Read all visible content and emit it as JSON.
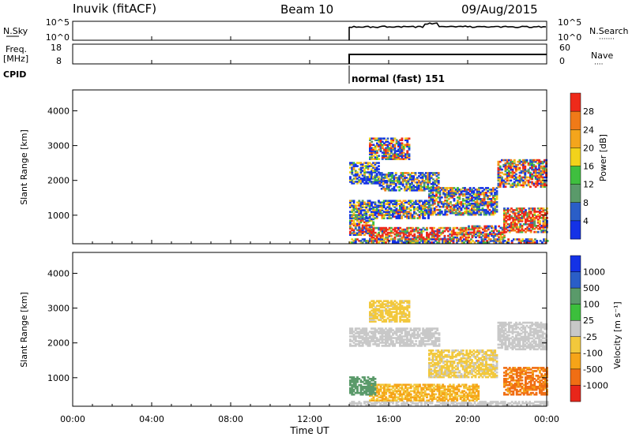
{
  "header": {
    "station": "Inuvik (fitACF)",
    "beam": "Beam 10",
    "date": "09/Aug/2015"
  },
  "panels": {
    "nsky": {
      "label": "N.Sky",
      "left_ticks": [
        "10^5",
        "10^0"
      ],
      "right_ticks": [
        "10^5",
        "10^0"
      ],
      "right_label": "N.Search",
      "right_legend_symbol": "·······"
    },
    "freq": {
      "label_line1": "Freq.",
      "label_line2": "[MHz]",
      "left_ticks": [
        "18",
        "8"
      ],
      "right_ticks": [
        "60",
        "0"
      ],
      "right_label": "Nave",
      "right_legend_symbol": "····"
    },
    "cpid": {
      "label": "CPID",
      "text": "normal (fast) 151"
    }
  },
  "colors": {
    "power_scale": [
      "#1432e6",
      "#2a5ec7",
      "#5a9a6a",
      "#3fbf3f",
      "#f2d21b",
      "#f4a51c",
      "#f07a18",
      "#ee2a1a"
    ],
    "velocity_scale": [
      "#e8261a",
      "#f06e14",
      "#f6a418",
      "#f2c83c",
      "#c8c8c8",
      "#3cbf3c",
      "#5a9a6a",
      "#2a5ec7",
      "#1432e6"
    ],
    "axis": "#000000"
  },
  "chart_data": [
    {
      "type": "heatmap",
      "name": "power",
      "title": "",
      "xlabel": "",
      "ylabel": "Slant Range [km]",
      "x_ticks": [
        "00:00",
        "04:00",
        "08:00",
        "12:00",
        "16:00",
        "20:00",
        "00:00"
      ],
      "y_ticks": [
        "1000",
        "2000",
        "3000",
        "4000"
      ],
      "xlim_hours": [
        0,
        24
      ],
      "ylim_km": [
        180,
        4600
      ],
      "colorbar": {
        "label": "Power [dB]",
        "ticks": [
          "4",
          "8",
          "12",
          "16",
          "20",
          "24",
          "28"
        ],
        "range": [
          0,
          32
        ]
      },
      "data_start_hour": 14.0,
      "regions": [
        {
          "t0": 14.0,
          "t1": 24.0,
          "r0": 200,
          "r1": 330,
          "value": 14
        },
        {
          "t0": 15.0,
          "t1": 20.0,
          "r0": 300,
          "r1": 620,
          "value": 28
        },
        {
          "t0": 14.0,
          "t1": 15.2,
          "r0": 420,
          "r1": 900,
          "value": 22
        },
        {
          "t0": 20.0,
          "t1": 21.8,
          "r0": 350,
          "r1": 700,
          "value": 24
        },
        {
          "t0": 21.8,
          "t1": 24.0,
          "r0": 500,
          "r1": 1200,
          "value": 27
        },
        {
          "t0": 14.0,
          "t1": 18.0,
          "r0": 900,
          "r1": 1400,
          "value": 10
        },
        {
          "t0": 18.0,
          "t1": 21.5,
          "r0": 1000,
          "r1": 1800,
          "value": 12
        },
        {
          "t0": 14.0,
          "t1": 15.5,
          "r0": 1900,
          "r1": 2500,
          "value": 6
        },
        {
          "t0": 15.5,
          "t1": 18.5,
          "r0": 1700,
          "r1": 2200,
          "value": 9
        },
        {
          "t0": 21.5,
          "t1": 24.0,
          "r0": 1800,
          "r1": 2600,
          "value": 16
        },
        {
          "t0": 15.0,
          "t1": 17.0,
          "r0": 2600,
          "r1": 3200,
          "value": 14
        }
      ]
    },
    {
      "type": "heatmap",
      "name": "velocity",
      "title": "",
      "xlabel": "Time UT",
      "ylabel": "Slant Range [km]",
      "x_ticks": [
        "00:00",
        "04:00",
        "08:00",
        "12:00",
        "16:00",
        "20:00",
        "00:00"
      ],
      "y_ticks": [
        "1000",
        "2000",
        "3000",
        "4000"
      ],
      "xlim_hours": [
        0,
        24
      ],
      "ylim_km": [
        180,
        4600
      ],
      "colorbar": {
        "label": "Velocity [m s⁻¹]",
        "ticks": [
          "1000",
          "500",
          "100",
          "25",
          "-25",
          "-100",
          "-500",
          "-1000"
        ],
        "range": [
          -1500,
          1500
        ]
      },
      "data_start_hour": 14.0,
      "regions": [
        {
          "t0": 14.0,
          "t1": 24.0,
          "r0": 200,
          "r1": 330,
          "value": 0
        },
        {
          "t0": 15.0,
          "t1": 20.5,
          "r0": 330,
          "r1": 800,
          "value": -110
        },
        {
          "t0": 14.0,
          "t1": 15.3,
          "r0": 500,
          "r1": 1000,
          "value": 200
        },
        {
          "t0": 21.8,
          "t1": 24.0,
          "r0": 500,
          "r1": 1300,
          "value": -600
        },
        {
          "t0": 14.0,
          "t1": 18.5,
          "r0": 1900,
          "r1": 2400,
          "value": 0
        },
        {
          "t0": 21.5,
          "t1": 24.0,
          "r0": 1800,
          "r1": 2600,
          "value": 0
        },
        {
          "t0": 18.0,
          "t1": 21.5,
          "r0": 1000,
          "r1": 1800,
          "value": -40
        },
        {
          "t0": 15.0,
          "t1": 17.0,
          "r0": 2600,
          "r1": 3200,
          "value": -60
        }
      ]
    }
  ]
}
